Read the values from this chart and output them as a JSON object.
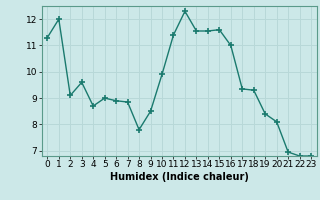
{
  "x": [
    0,
    1,
    2,
    3,
    4,
    5,
    6,
    7,
    8,
    9,
    10,
    11,
    12,
    13,
    14,
    15,
    16,
    17,
    18,
    19,
    20,
    21,
    22,
    23
  ],
  "y": [
    11.3,
    12.0,
    9.1,
    9.6,
    8.7,
    9.0,
    8.9,
    8.85,
    7.8,
    8.5,
    9.9,
    11.4,
    12.3,
    11.55,
    11.55,
    11.6,
    11.0,
    9.35,
    9.3,
    8.4,
    8.1,
    6.95,
    6.8,
    6.8
  ],
  "line_color": "#1a7a6e",
  "marker": "+",
  "marker_size": 5,
  "marker_lw": 1.2,
  "bg_color": "#cce8e8",
  "grid_color": "#b8d8d8",
  "xlabel": "Humidex (Indice chaleur)",
  "ylim": [
    6.8,
    12.5
  ],
  "yticks": [
    7,
    8,
    9,
    10,
    11,
    12
  ],
  "xticks": [
    0,
    1,
    2,
    3,
    4,
    5,
    6,
    7,
    8,
    9,
    10,
    11,
    12,
    13,
    14,
    15,
    16,
    17,
    18,
    19,
    20,
    21,
    22,
    23
  ],
  "label_fontsize": 7,
  "tick_fontsize": 6.5,
  "line_width": 1.0
}
